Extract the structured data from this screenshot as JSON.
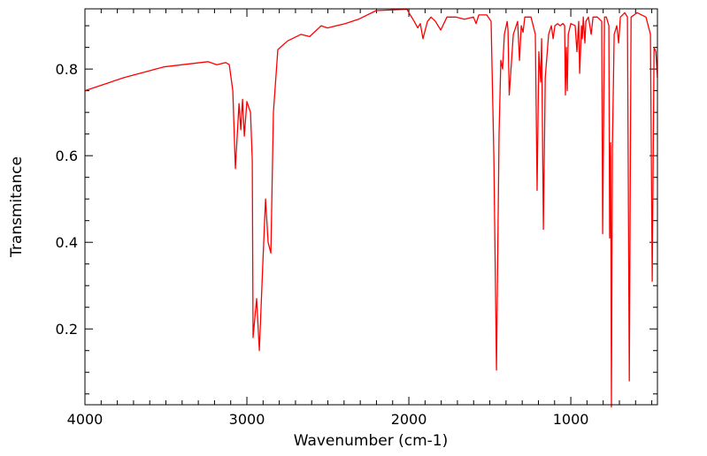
{
  "chart_data": {
    "type": "line",
    "title": "",
    "xlabel": "Wavenumber (cm-1)",
    "ylabel": "Transmitance",
    "xlim": [
      4000,
      465
    ],
    "ylim": [
      0.025,
      0.939
    ],
    "x_ticks": [
      4000,
      3000,
      2000,
      1000
    ],
    "x_tick_labels": [
      "4000",
      "3000",
      "2000",
      "1000"
    ],
    "y_ticks": [
      0.2,
      0.4,
      0.6,
      0.8
    ],
    "y_tick_labels": [
      "0.2",
      "0.4",
      "0.6",
      "0.8"
    ],
    "grid": false,
    "legend": "none",
    "series": [
      {
        "name": "spectrum",
        "color": "#ff0000",
        "x": [
          4000,
          3760,
          3514,
          3240,
          3186,
          3131,
          3109,
          3087,
          3071,
          3049,
          3038,
          3027,
          3016,
          3000,
          2978,
          2967,
          2962,
          2940,
          2923,
          2902,
          2885,
          2869,
          2852,
          2836,
          2809,
          2749,
          2667,
          2612,
          2541,
          2503,
          2393,
          2311,
          2202,
          2011,
          2000,
          1967,
          1945,
          1929,
          1913,
          1885,
          1863,
          1836,
          1803,
          1765,
          1710,
          1656,
          1601,
          1585,
          1568,
          1519,
          1492,
          1475,
          1459,
          1443,
          1432,
          1421,
          1410,
          1393,
          1388,
          1380,
          1355,
          1328,
          1317,
          1306,
          1295,
          1284,
          1246,
          1219,
          1208,
          1197,
          1186,
          1180,
          1169,
          1158,
          1137,
          1120,
          1109,
          1098,
          1082,
          1066,
          1049,
          1038,
          1033,
          1027,
          1022,
          1016,
          1000,
          973,
          962,
          951,
          945,
          934,
          929,
          923,
          913,
          907,
          891,
          874,
          863,
          836,
          809,
          803,
          792,
          781,
          765,
          760,
          754,
          749,
          743,
          732,
          716,
          705,
          694,
          667,
          650,
          639,
          628,
          590,
          536,
          508,
          497,
          486,
          475,
          465
        ],
        "y": [
          0.75,
          0.78,
          0.805,
          0.817,
          0.81,
          0.815,
          0.81,
          0.75,
          0.57,
          0.72,
          0.66,
          0.73,
          0.645,
          0.725,
          0.7,
          0.59,
          0.18,
          0.27,
          0.15,
          0.35,
          0.5,
          0.4,
          0.375,
          0.7,
          0.845,
          0.865,
          0.88,
          0.875,
          0.9,
          0.895,
          0.905,
          0.915,
          0.935,
          0.938,
          0.93,
          0.91,
          0.895,
          0.905,
          0.87,
          0.91,
          0.92,
          0.91,
          0.89,
          0.92,
          0.92,
          0.915,
          0.92,
          0.905,
          0.925,
          0.925,
          0.91,
          0.6,
          0.105,
          0.65,
          0.82,
          0.8,
          0.88,
          0.91,
          0.89,
          0.74,
          0.88,
          0.91,
          0.82,
          0.9,
          0.885,
          0.92,
          0.92,
          0.88,
          0.52,
          0.84,
          0.77,
          0.87,
          0.43,
          0.78,
          0.88,
          0.9,
          0.87,
          0.9,
          0.905,
          0.9,
          0.905,
          0.9,
          0.74,
          0.85,
          0.75,
          0.88,
          0.905,
          0.9,
          0.84,
          0.91,
          0.79,
          0.9,
          0.87,
          0.92,
          0.86,
          0.91,
          0.92,
          0.88,
          0.92,
          0.92,
          0.91,
          0.42,
          0.92,
          0.92,
          0.9,
          0.41,
          0.63,
          0.02,
          0.62,
          0.88,
          0.9,
          0.86,
          0.92,
          0.93,
          0.92,
          0.08,
          0.92,
          0.93,
          0.92,
          0.88,
          0.31,
          0.85,
          0.84,
          0.78
        ]
      }
    ]
  }
}
